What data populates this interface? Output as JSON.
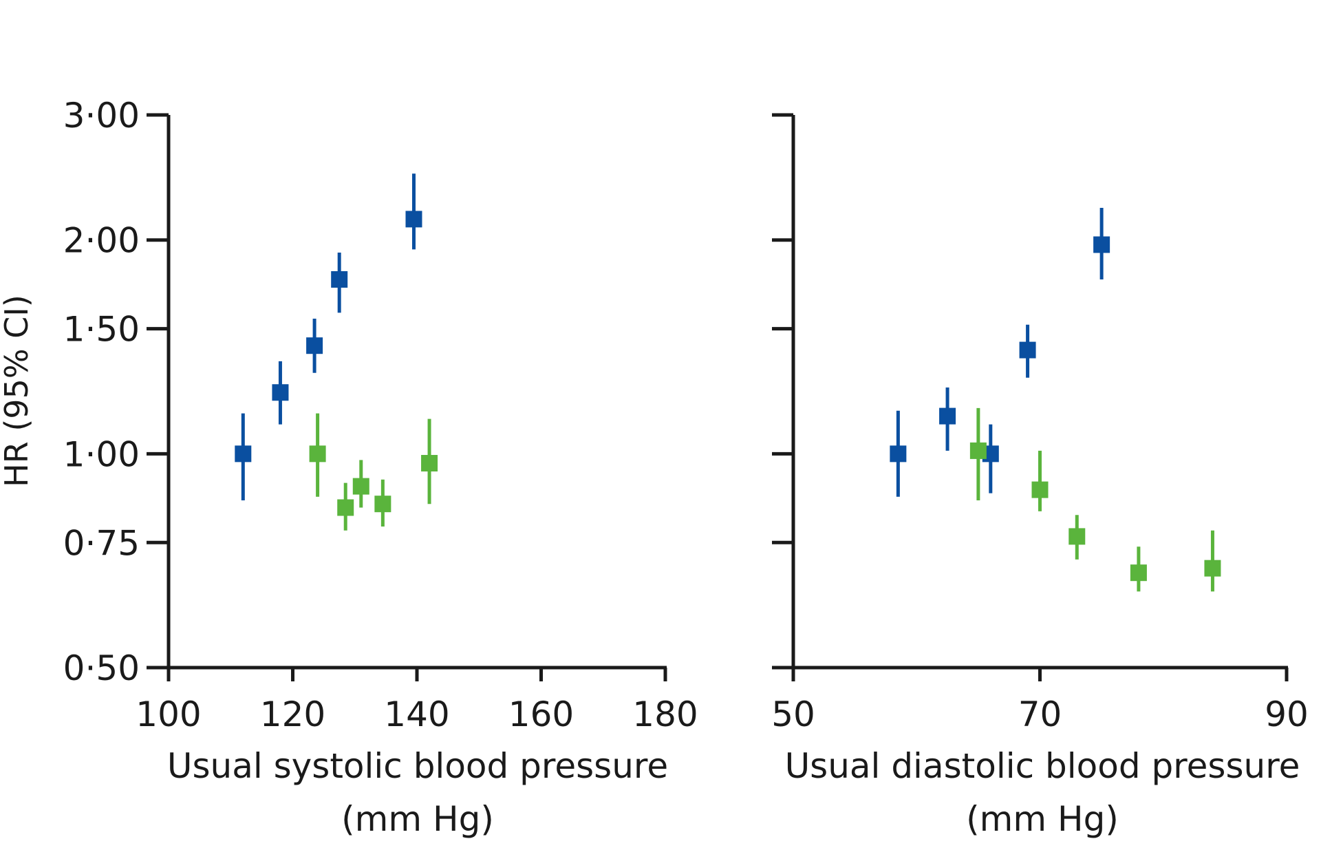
{
  "chart_data": [
    {
      "type": "scatter",
      "title": "",
      "ylabel": "HR (95% CI)",
      "xlabel_lines": [
        "Usual systolic blood pressure",
        "(mm Hg)"
      ],
      "xlim": [
        100,
        180
      ],
      "x_ticks": [
        "100",
        "120",
        "140",
        "160",
        "180"
      ],
      "ylim": [
        0.5,
        3.0
      ],
      "y_scale": "log",
      "y_ticks": [
        {
          "value": 0.5,
          "label": "0·50"
        },
        {
          "value": 0.75,
          "label": "0·75"
        },
        {
          "value": 1.0,
          "label": "1·00"
        },
        {
          "value": 1.5,
          "label": "1·50"
        },
        {
          "value": 2.0,
          "label": "2·00"
        },
        {
          "value": 3.0,
          "label": "3·00"
        }
      ],
      "series": [
        {
          "name": "blue",
          "color": "#0a4fa0",
          "points": [
            {
              "x": 112,
              "y": 1.0,
              "lo": 0.86,
              "hi": 1.14
            },
            {
              "x": 118,
              "y": 1.22,
              "lo": 1.1,
              "hi": 1.35
            },
            {
              "x": 123.5,
              "y": 1.42,
              "lo": 1.3,
              "hi": 1.55
            },
            {
              "x": 127.5,
              "y": 1.76,
              "lo": 1.58,
              "hi": 1.92
            },
            {
              "x": 139.5,
              "y": 2.14,
              "lo": 1.94,
              "hi": 2.48
            }
          ]
        },
        {
          "name": "green",
          "color": "#5ab43c",
          "points": [
            {
              "x": 124,
              "y": 1.0,
              "lo": 0.87,
              "hi": 1.14
            },
            {
              "x": 128.5,
              "y": 0.84,
              "lo": 0.78,
              "hi": 0.91
            },
            {
              "x": 131,
              "y": 0.9,
              "lo": 0.84,
              "hi": 0.98
            },
            {
              "x": 134.5,
              "y": 0.85,
              "lo": 0.79,
              "hi": 0.92
            },
            {
              "x": 142,
              "y": 0.97,
              "lo": 0.85,
              "hi": 1.12
            }
          ]
        }
      ]
    },
    {
      "type": "scatter",
      "title": "",
      "ylabel": "",
      "xlabel_lines": [
        "Usual diastolic blood pressure",
        "(mm Hg)"
      ],
      "xlim": [
        50,
        90
      ],
      "x_ticks": [
        "50",
        "70",
        "90"
      ],
      "ylim": [
        0.5,
        3.0
      ],
      "y_scale": "log",
      "y_ticks": [
        {
          "value": 0.5,
          "label": ""
        },
        {
          "value": 0.75,
          "label": ""
        },
        {
          "value": 1.0,
          "label": ""
        },
        {
          "value": 1.5,
          "label": ""
        },
        {
          "value": 2.0,
          "label": ""
        },
        {
          "value": 3.0,
          "label": ""
        }
      ],
      "series": [
        {
          "name": "blue",
          "color": "#0a4fa0",
          "points": [
            {
              "x": 58.5,
              "y": 1.0,
              "lo": 0.87,
              "hi": 1.15
            },
            {
              "x": 62.5,
              "y": 1.13,
              "lo": 1.01,
              "hi": 1.24
            },
            {
              "x": 66,
              "y": 1.0,
              "lo": 0.88,
              "hi": 1.1
            },
            {
              "x": 69,
              "y": 1.4,
              "lo": 1.28,
              "hi": 1.52
            },
            {
              "x": 75,
              "y": 1.97,
              "lo": 1.76,
              "hi": 2.22
            }
          ]
        },
        {
          "name": "green",
          "color": "#5ab43c",
          "points": [
            {
              "x": 65,
              "y": 1.01,
              "lo": 0.86,
              "hi": 1.16
            },
            {
              "x": 70,
              "y": 0.89,
              "lo": 0.83,
              "hi": 1.01
            },
            {
              "x": 73,
              "y": 0.765,
              "lo": 0.71,
              "hi": 0.82
            },
            {
              "x": 78,
              "y": 0.68,
              "lo": 0.64,
              "hi": 0.74
            },
            {
              "x": 84,
              "y": 0.69,
              "lo": 0.64,
              "hi": 0.78
            }
          ]
        }
      ]
    }
  ]
}
